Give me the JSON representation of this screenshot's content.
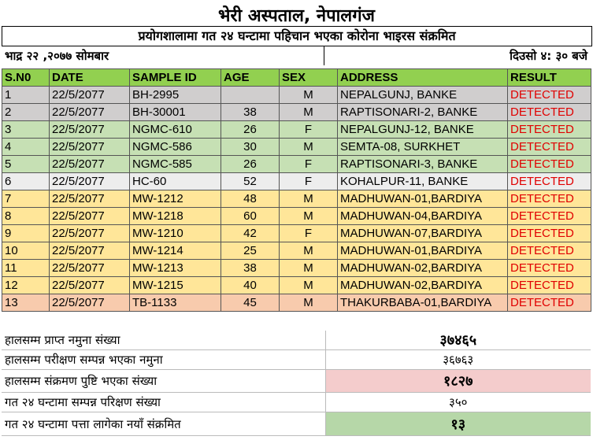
{
  "header": {
    "title": "भेरी अस्पताल, नेपालगंज",
    "subtitle": "प्रयोगशालामा गत २४ घन्टामा पहिचान भएका कोरोना भाइरस संक्रमित",
    "date": "भाद्र २२ ,२०७७  सोमबार",
    "time": "दिउसो ४: ३० बजे"
  },
  "colors": {
    "header": "#92d050",
    "grey": "#d0cece",
    "green": "#c6e0b4",
    "light": "#ededed",
    "yellow": "#ffe699",
    "orange": "#f8cbad",
    "detected": "#e00000"
  },
  "table": {
    "columns": [
      "S.N0",
      "DATE",
      "SAMPLE ID",
      "AGE",
      "SEX",
      "ADDRESS",
      "RESULT"
    ],
    "rows": [
      {
        "sn": "1",
        "date": "22/5/2077",
        "id": "BH-2995",
        "age": "",
        "sex": "M",
        "address": "NEPALGUNJ, BANKE",
        "result": "DETECTED",
        "bg": "#d0cece"
      },
      {
        "sn": "2",
        "date": "22/5/2077",
        "id": "BH-30001",
        "age": "38",
        "sex": "M",
        "address": "RAPTISONARI-2, BANKE",
        "result": "DETECTED",
        "bg": "#d0cece"
      },
      {
        "sn": "3",
        "date": "22/5/2077",
        "id": "NGMC-610",
        "age": "26",
        "sex": "F",
        "address": "NEPALGUNJ-12, BANKE",
        "result": "DETECTED",
        "bg": "#c6e0b4"
      },
      {
        "sn": "4",
        "date": "22/5/2077",
        "id": "NGMC-586",
        "age": "30",
        "sex": "M",
        "address": "SEMTA-08, SURKHET",
        "result": "DETECTED",
        "bg": "#c6e0b4"
      },
      {
        "sn": "5",
        "date": "22/5/2077",
        "id": "NGMC-585",
        "age": "26",
        "sex": "F",
        "address": "RAPTISONARI-3, BANKE",
        "result": "DETECTED",
        "bg": "#c6e0b4"
      },
      {
        "sn": "6",
        "date": "22/5/2077",
        "id": "HC-60",
        "age": "52",
        "sex": "F",
        "address": "KOHALPUR-11, BANKE",
        "result": "DETECTED",
        "bg": "#ededed"
      },
      {
        "sn": "7",
        "date": "22/5/2077",
        "id": "MW-1212",
        "age": "48",
        "sex": "M",
        "address": "MADHUWAN-01,BARDIYA",
        "result": "DETECTED",
        "bg": "#ffe699"
      },
      {
        "sn": "8",
        "date": "22/5/2077",
        "id": "MW-1218",
        "age": "60",
        "sex": "M",
        "address": "MADHUWAN-04,BARDIYA",
        "result": "DETECTED",
        "bg": "#ffe699"
      },
      {
        "sn": "9",
        "date": "22/5/2077",
        "id": "MW-1210",
        "age": "42",
        "sex": "F",
        "address": "MADHUWAN-07,BARDIYA",
        "result": "DETECTED",
        "bg": "#ffe699"
      },
      {
        "sn": "10",
        "date": "22/5/2077",
        "id": "MW-1214",
        "age": "25",
        "sex": "M",
        "address": "MADHUWAN-01,BARDIYA",
        "result": "DETECTED",
        "bg": "#ffe699"
      },
      {
        "sn": "11",
        "date": "22/5/2077",
        "id": "MW-1213",
        "age": "38",
        "sex": "M",
        "address": "MADHUWAN-02,BARDIYA",
        "result": "DETECTED",
        "bg": "#ffe699"
      },
      {
        "sn": "12",
        "date": "22/5/2077",
        "id": "MW-1215",
        "age": "40",
        "sex": "M",
        "address": "MADHUWAN-02,BARDIYA",
        "result": "DETECTED",
        "bg": "#ffe699"
      },
      {
        "sn": "13",
        "date": "22/5/2077",
        "id": "TB-1133",
        "age": "45",
        "sex": "M",
        "address": "THAKURBABA-01,BARDIYA",
        "result": "DETECTED",
        "bg": "#f8cbad"
      }
    ]
  },
  "summary": [
    {
      "label": "हालसम्म प्राप्त नमुना संख्या",
      "value": "३७४६५",
      "bold": true,
      "bg": ""
    },
    {
      "label": "हालसम्म परीक्षण सम्पन्न भएका नमुना",
      "value": "३६७६३",
      "bold": false,
      "bg": ""
    },
    {
      "label": "हालसम्म संक्रमण पुष्टि भएका संख्या",
      "value": "१८२७",
      "bold": true,
      "bg": "#f4cccc"
    },
    {
      "label": "गत २४ घन्टामा सम्पन्न परिक्षण संख्या",
      "value": "३५०",
      "bold": false,
      "bg": ""
    },
    {
      "label": "गत २४ घन्टामा पत्ता लागेका नयाँ संक्रमित",
      "value": "१३",
      "bold": true,
      "bg": "#b6d7a8"
    }
  ]
}
